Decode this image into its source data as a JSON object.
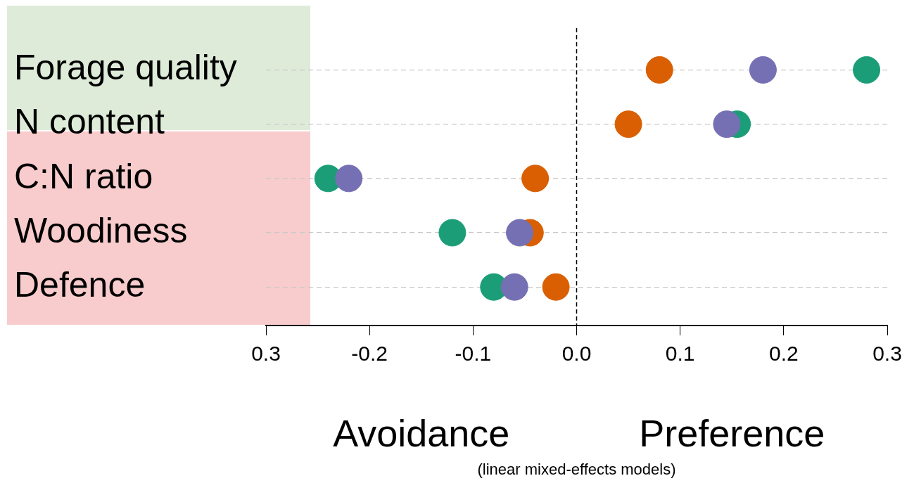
{
  "chart_data": {
    "type": "scatter",
    "categories": [
      "Forage quality",
      "N content",
      "C:N ratio",
      "Woodiness",
      "Defence"
    ],
    "series": [
      {
        "color": "#1b9e77",
        "values": [
          0.28,
          0.155,
          -0.24,
          -0.12,
          -0.08
        ]
      },
      {
        "color": "#d95f02",
        "values": [
          0.08,
          0.05,
          -0.04,
          -0.045,
          -0.02
        ]
      },
      {
        "color": "#7570b3",
        "values": [
          0.18,
          0.145,
          -0.22,
          -0.055,
          -0.06
        ]
      }
    ],
    "orientation": "horizontal",
    "marker": "circle",
    "grid": "y",
    "legend": false,
    "xlim": [
      -0.3,
      0.3
    ],
    "xticks": [
      {
        "value": -0.3,
        "label": "0.3"
      },
      -0.2,
      -0.1,
      {
        "value": 0,
        "label": "0.0"
      },
      0.1,
      0.2,
      0.3
    ],
    "ref_lines": [
      {
        "axis": "x",
        "value": 0,
        "line_style": "dashed",
        "color": "#000000"
      }
    ],
    "annotations": [
      "Avoidance",
      "Preference",
      "(linear mixed-effects models)"
    ]
  }
}
